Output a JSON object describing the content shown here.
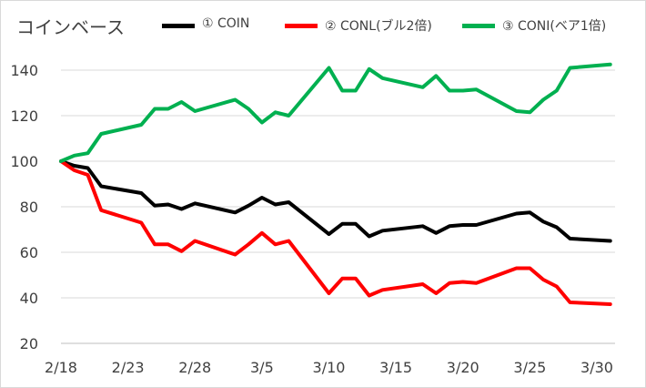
{
  "chart_data": {
    "type": "line",
    "title": "コインベース",
    "x": [
      "2/18",
      "2/19",
      "2/20",
      "2/21",
      "2/24",
      "2/25",
      "2/26",
      "2/27",
      "2/28",
      "3/3",
      "3/4",
      "3/5",
      "3/6",
      "3/7",
      "3/10",
      "3/11",
      "3/12",
      "3/13",
      "3/14",
      "3/17",
      "3/18",
      "3/19",
      "3/20",
      "3/21",
      "3/24",
      "3/25",
      "3/26",
      "3/27",
      "3/28",
      "3/31"
    ],
    "x_tick_labels": [
      "2/18",
      "2/23",
      "2/28",
      "3/5",
      "3/10",
      "3/15",
      "3/20",
      "3/25",
      "3/30"
    ],
    "y_tick_labels": [
      "20",
      "40",
      "60",
      "80",
      "100",
      "120",
      "140"
    ],
    "ylim": [
      20,
      150
    ],
    "grid": "horizontal",
    "legend_position": "top",
    "series": [
      {
        "name": "① COIN",
        "color": "#000000",
        "values": [
          100,
          98,
          97,
          89,
          86,
          80.5,
          81,
          79,
          81.5,
          77.5,
          80.5,
          84,
          81,
          82,
          68,
          72.5,
          72.5,
          67,
          69.5,
          71.5,
          68.5,
          71.5,
          72,
          72,
          77,
          77.5,
          73.5,
          71,
          66,
          65
        ]
      },
      {
        "name": "② CONL(ブル2倍)",
        "color": "#ff0000",
        "values": [
          100,
          96,
          94,
          78.5,
          73,
          63.5,
          63.5,
          60.5,
          65,
          59,
          63.5,
          68.5,
          63.5,
          65,
          42,
          48.5,
          48.5,
          41,
          43.5,
          46,
          42,
          46.5,
          47,
          46.5,
          53,
          53,
          48,
          45,
          38,
          37.2
        ]
      },
      {
        "name": "③ CONI(ベア1倍)",
        "color": "#00b050",
        "values": [
          100,
          102.5,
          103.5,
          112,
          116,
          123,
          123,
          126,
          122,
          127,
          123,
          117,
          121.5,
          120,
          141,
          131,
          131,
          140.5,
          136.5,
          132.5,
          137.5,
          131,
          131,
          131.5,
          122,
          121.5,
          127,
          131,
          141,
          142.5
        ]
      }
    ]
  }
}
